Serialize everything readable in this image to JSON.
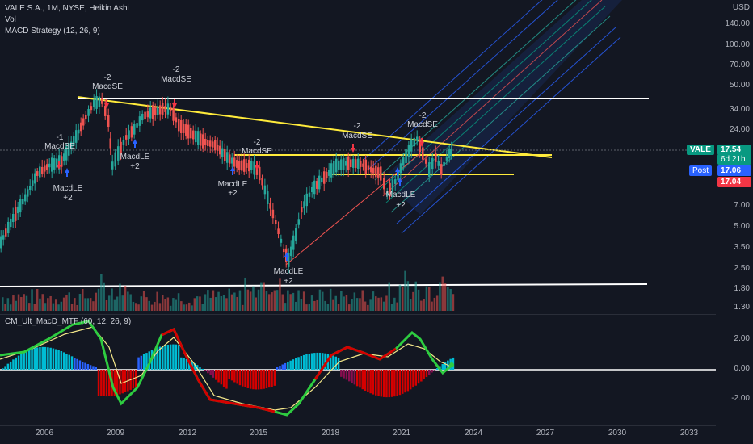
{
  "legend": {
    "main_title": "VALE S.A., 1M, NYSE, Heikin Ashi",
    "vol_label": "Vol",
    "strategy_label": "MACD Strategy (12, 26, 9)",
    "indicator_label": "CM_Ult_MacD_MTF (60, 12, 26, 9)"
  },
  "axis": {
    "currency": "USD",
    "price_ticks": [
      "140.00",
      "100.00",
      "70.00",
      "50.00",
      "34.00",
      "24.00",
      "7.00",
      "5.00",
      "3.50",
      "2.50",
      "1.80",
      "1.30"
    ],
    "osc_ticks": [
      "2.00",
      "0.00",
      "-2.00"
    ],
    "year_ticks": [
      "2006",
      "2009",
      "2012",
      "2015",
      "2018",
      "2021",
      "2024",
      "2027",
      "2030",
      "2033"
    ]
  },
  "price_tags": {
    "symbol": "VALE",
    "last_price": "17.54",
    "countdown": "6d 21h",
    "post_label": "Post",
    "post_price": "17.06",
    "red_price": "17.04"
  },
  "annotations": [
    {
      "text": "-2",
      "key": "a1"
    },
    {
      "text": "MacdSE",
      "key": "a2"
    },
    {
      "text": "-2",
      "key": "a3"
    },
    {
      "text": "MacdSE",
      "key": "a4"
    },
    {
      "text": "-1",
      "key": "a5"
    },
    {
      "text": "MacdSE",
      "key": "a6"
    },
    {
      "text": "MacdLE",
      "key": "a7"
    },
    {
      "text": "+2",
      "key": "a8"
    },
    {
      "text": "MacdLE",
      "key": "a9"
    },
    {
      "text": "+2",
      "key": "a10"
    },
    {
      "text": "MacdLE",
      "key": "a11"
    },
    {
      "text": "+2",
      "key": "a12"
    },
    {
      "text": "-2",
      "key": "a13"
    },
    {
      "text": "MacdSE",
      "key": "a14"
    },
    {
      "text": "-2",
      "key": "a15"
    },
    {
      "text": "MacdSE",
      "key": "a16"
    },
    {
      "text": "MacdLE",
      "key": "a17"
    },
    {
      "text": "+2",
      "key": "a18"
    },
    {
      "text": "-2",
      "key": "a19"
    },
    {
      "text": "MacdSE",
      "key": "a20"
    },
    {
      "text": "MacdLE",
      "key": "a21"
    },
    {
      "text": "+2",
      "key": "a22"
    }
  ],
  "colors": {
    "background": "#131722",
    "up": "#26a69a",
    "down": "#ef5350",
    "yellow": "#ffeb3b",
    "white": "#ffffff",
    "tag_blue": "#2962ff",
    "tag_green": "#089981",
    "tag_red": "#f23645"
  }
}
